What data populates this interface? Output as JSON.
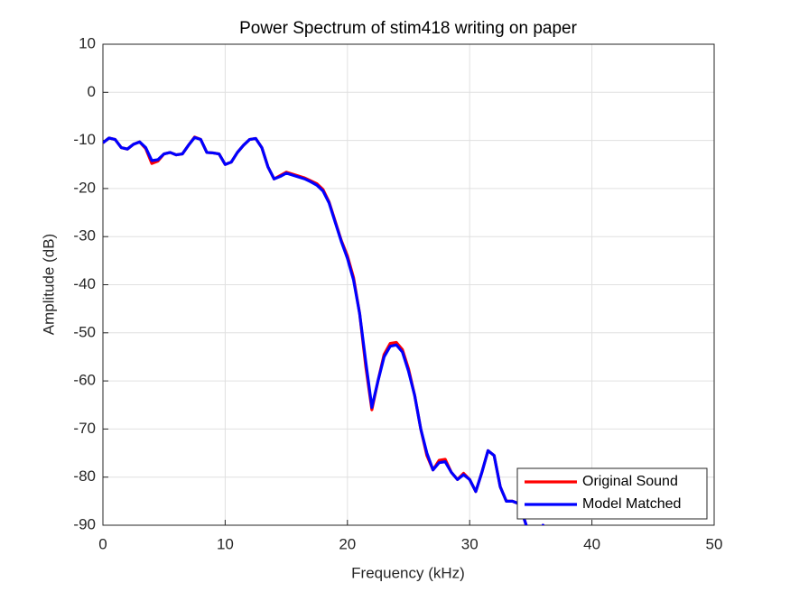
{
  "chart_data": {
    "type": "line",
    "title": "Power Spectrum of stim418 writing on paper",
    "x_label": "Frequency (kHz)",
    "y_label": "Amplitude (dB)",
    "x": [
      0,
      0.5,
      1,
      1.5,
      2,
      2.5,
      3,
      3.5,
      4,
      4.5,
      5,
      5.5,
      6,
      6.5,
      7,
      7.5,
      8,
      8.5,
      9,
      9.5,
      10,
      10.5,
      11,
      11.5,
      12,
      12.5,
      13,
      13.5,
      14,
      14.5,
      15,
      15.5,
      16,
      16.5,
      17,
      17.5,
      18,
      18.5,
      19,
      19.5,
      20,
      20.5,
      21,
      21.5,
      22,
      22.5,
      23,
      23.5,
      24,
      24.5,
      25,
      25.5,
      26,
      26.5,
      27,
      27.5,
      28,
      28.5,
      29,
      29.5,
      30,
      30.5,
      31,
      31.5,
      32,
      32.5,
      33,
      33.5,
      34,
      34.5,
      35,
      35.5,
      36,
      36.5,
      37
    ],
    "series": [
      {
        "name": "Original Sound",
        "color": "#ff0000",
        "values": [
          -10.5,
          -9.5,
          -9.8,
          -11.5,
          -11.8,
          -10.8,
          -10.3,
          -11.7,
          -14.8,
          -14.3,
          -12.8,
          -12.5,
          -13,
          -12.8,
          -11,
          -9.3,
          -9.8,
          -12.5,
          -12.6,
          -12.8,
          -15,
          -14.5,
          -12.5,
          -11,
          -9.8,
          -9.6,
          -11.5,
          -15.5,
          -18,
          -17.3,
          -16.6,
          -17,
          -17.4,
          -17.8,
          -18.4,
          -19,
          -20.2,
          -22.8,
          -26.8,
          -30.8,
          -34,
          -38.5,
          -46,
          -57,
          -66,
          -60,
          -54.5,
          -52.2,
          -52,
          -53.5,
          -57.5,
          -63,
          -70,
          -75.5,
          -78.5,
          -76.5,
          -76.3,
          -79,
          -80.5,
          -79.2,
          -80.5,
          -83,
          -79,
          -74.5,
          -75.5,
          -82,
          -85,
          -85,
          -85.5,
          -89,
          -93,
          -94,
          -90,
          -92,
          -97
        ]
      },
      {
        "name": "Model Matched",
        "color": "#0000ff",
        "values": [
          -10.5,
          -9.5,
          -9.8,
          -11.5,
          -11.8,
          -10.8,
          -10.3,
          -11.5,
          -14.2,
          -14,
          -12.8,
          -12.5,
          -13,
          -12.8,
          -11,
          -9.4,
          -9.8,
          -12.5,
          -12.6,
          -12.8,
          -15,
          -14.5,
          -12.5,
          -11,
          -9.8,
          -9.6,
          -11.5,
          -15.5,
          -18,
          -17.5,
          -16.8,
          -17.2,
          -17.6,
          -18,
          -18.6,
          -19.3,
          -20.5,
          -23,
          -27,
          -31,
          -34.5,
          -39,
          -46,
          -56,
          -65.5,
          -60,
          -55,
          -52.8,
          -52.5,
          -54,
          -58,
          -63,
          -70,
          -75,
          -78.5,
          -77,
          -76.8,
          -79,
          -80.5,
          -79.5,
          -80.5,
          -83,
          -79,
          -74.5,
          -75.5,
          -82,
          -85,
          -85,
          -85.5,
          -89,
          -93,
          -94,
          -90,
          -92,
          -97
        ]
      }
    ],
    "xlim": [
      0,
      50
    ],
    "xticks": [
      0,
      10,
      20,
      30,
      40,
      50
    ],
    "ylim": [
      -90,
      10
    ],
    "yticks": [
      -90,
      -80,
      -70,
      -60,
      -50,
      -40,
      -30,
      -20,
      -10,
      0,
      10
    ],
    "grid": true,
    "legend_position": "lower-right"
  }
}
